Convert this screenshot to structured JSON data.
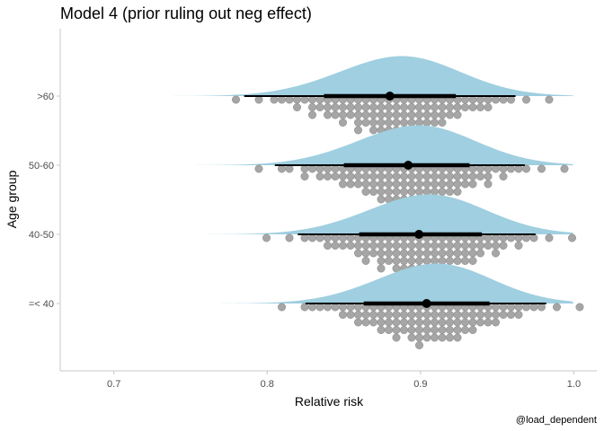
{
  "chart_data": {
    "type": "halfeye-dotplot",
    "title": "Model 4 (prior ruling out neg effect)",
    "xlabel": "Relative risk",
    "ylabel": "Age group",
    "caption": "@load_dependent",
    "xlim": [
      0.665,
      1.015
    ],
    "xticks": [
      0.7,
      0.8,
      0.9,
      1.0
    ],
    "xtick_labels": [
      "0.7",
      "0.8",
      "0.9",
      "1.0"
    ],
    "categories": [
      ">60",
      "50-60",
      "40-50",
      "=< 40"
    ],
    "grid": false,
    "colors": {
      "density": "#9fcfe0",
      "dots": "#a6a6a6",
      "interval": "#000000"
    },
    "series": [
      {
        "category": ">60",
        "median": 0.88,
        "interval_66": [
          0.837,
          0.923
        ],
        "interval_95": [
          0.785,
          0.962
        ],
        "density_mean": 0.882,
        "density_sd": 0.04
      },
      {
        "category": "50-60",
        "median": 0.892,
        "interval_66": [
          0.85,
          0.932
        ],
        "interval_95": [
          0.805,
          0.968
        ],
        "density_mean": 0.893,
        "density_sd": 0.039
      },
      {
        "category": "40-50",
        "median": 0.899,
        "interval_66": [
          0.86,
          0.94
        ],
        "interval_95": [
          0.82,
          0.975
        ],
        "density_mean": 0.9,
        "density_sd": 0.039
      },
      {
        "category": "=< 40",
        "median": 0.904,
        "interval_66": [
          0.863,
          0.945
        ],
        "interval_95": [
          0.825,
          0.982
        ],
        "density_mean": 0.905,
        "density_sd": 0.038
      }
    ]
  }
}
